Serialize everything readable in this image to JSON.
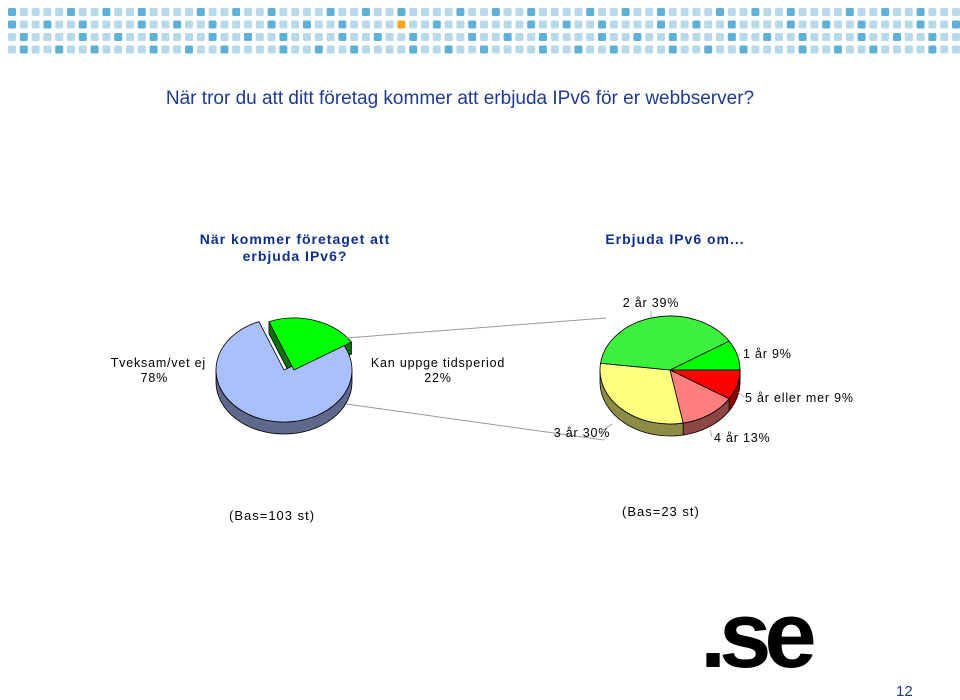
{
  "slide": {
    "title": "När tror du att ditt företag kommer att erbjuda IPv6 för er webbserver?",
    "number": "12",
    "logo": ".se"
  },
  "colors": {
    "header_dot_light": "#b7d9ea",
    "header_dot_mid": "#5fb0d6",
    "header_dot_accent": "#f5a623",
    "title_blue": "#1f3a8f"
  },
  "chart_data": [
    {
      "type": "pie",
      "title": "När kommer företaget att erbjuda IPv6?",
      "slices": [
        {
          "label": "Tveksam/vet ej",
          "value": 78,
          "value_label": "78%",
          "color": "#aabfff"
        },
        {
          "label": "Kan uppge tidsperiod",
          "value": 22,
          "value_label": "22%",
          "color": "#00ff00",
          "exploded": true
        }
      ],
      "base_note": "(Bas=103 st)"
    },
    {
      "type": "pie",
      "title": "Erbjuda IPv6 om...",
      "slices": [
        {
          "label": "1 år",
          "value": 9,
          "value_label": "9%",
          "color": "#00ff00"
        },
        {
          "label": "5 år eller mer",
          "value": 9,
          "value_label": "9%",
          "color": "#ff0000"
        },
        {
          "label": "4 år",
          "value": 13,
          "value_label": "13%",
          "color": "#ff7f7f"
        },
        {
          "label": "3 år",
          "value": 30,
          "value_label": "30%",
          "color": "#ffff80"
        },
        {
          "label": "2 år",
          "value": 39,
          "value_label": "39%",
          "color": "#3cf03c"
        }
      ],
      "base_note": "(Bas=23 st)"
    }
  ]
}
